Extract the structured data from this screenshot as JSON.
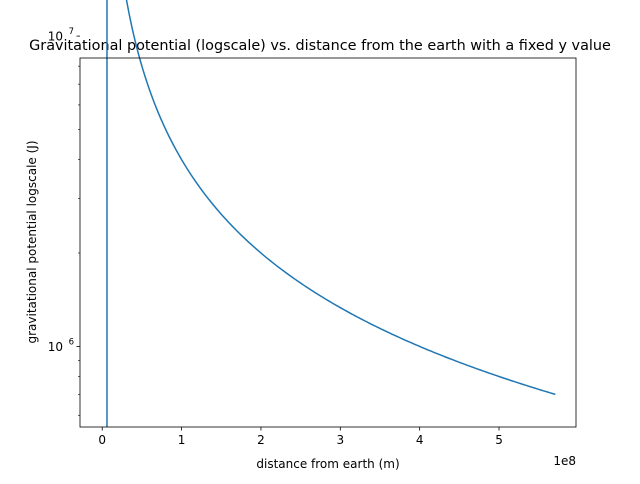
{
  "chart_data": {
    "type": "line",
    "title": "Gravitational potential (logscale) vs. distance from the earth with a fixed y value",
    "xlabel": "distance from earth (m)",
    "ylabel": "gravitational potential logscale (J)",
    "x_scale_label": "1e8",
    "x_scale_factor": 100000000,
    "xlim": [
      -28000000,
      597000000
    ],
    "ylim": [
      550000,
      8500000
    ],
    "yscale": "log",
    "grid": false,
    "x_ticks": [
      {
        "value": 0,
        "label": "0"
      },
      {
        "value": 100000000,
        "label": "1"
      },
      {
        "value": 200000000,
        "label": "2"
      },
      {
        "value": 300000000,
        "label": "3"
      },
      {
        "value": 400000000,
        "label": "4"
      },
      {
        "value": 500000000,
        "label": "5"
      }
    ],
    "y_major_ticks": [
      {
        "value": 1000000,
        "label_base": "10",
        "label_exp": "6"
      },
      {
        "value": 10000000,
        "label_base": "10",
        "label_exp": "7"
      }
    ],
    "y_minor_ticks": [
      600000,
      700000,
      800000,
      900000,
      2000000,
      3000000,
      4000000,
      5000000,
      6000000,
      7000000,
      8000000
    ],
    "series": [
      {
        "color": "#1f77b4",
        "model": "inverse",
        "numerator": 400000000000000,
        "x_start": 6000000,
        "x_end": 570000000,
        "samples": 200,
        "x": [
          6000000,
          6000000
        ],
        "y": [
          550000,
          66000000
        ]
      }
    ]
  }
}
